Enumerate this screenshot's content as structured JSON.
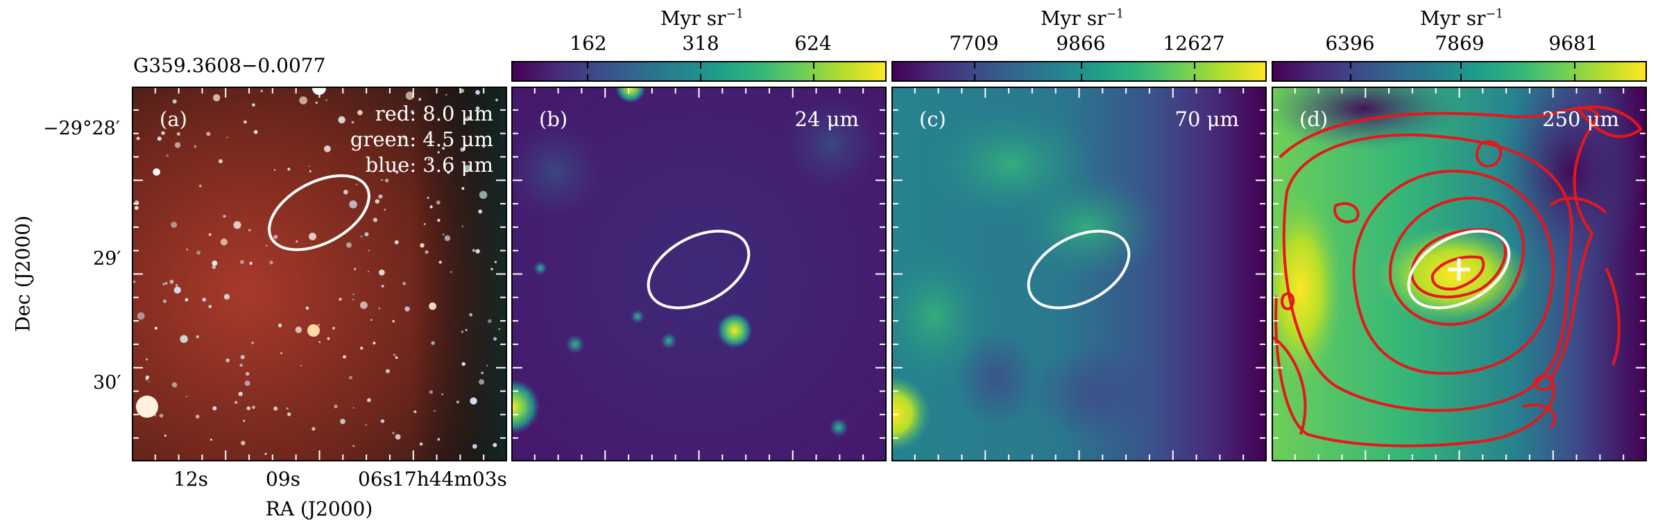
{
  "source_name": "G359.3608−0.0077",
  "colorbars": [
    {
      "unit": "Myr sr",
      "unit_exp": "−1",
      "ticks": [
        "162",
        "318",
        "624"
      ]
    },
    {
      "unit": "Myr sr",
      "unit_exp": "−1",
      "ticks": [
        "7709",
        "9866",
        "12627"
      ]
    },
    {
      "unit": "Myr sr",
      "unit_exp": "−1",
      "ticks": [
        "6396",
        "7869",
        "9681"
      ]
    }
  ],
  "panels": [
    {
      "tag": "(a)",
      "lines": [
        "red: 8.0 μm",
        "green: 4.5 μm",
        "blue: 3.6 μm"
      ]
    },
    {
      "tag": "(b)",
      "band": "24 μm"
    },
    {
      "tag": "(c)",
      "band": "70 μm"
    },
    {
      "tag": "(d)",
      "band": "250 μm"
    }
  ],
  "axes": {
    "xlabel": "RA (J2000)",
    "ylabel": "Dec (J2000)",
    "xticks": [
      "12s",
      "09s",
      "06s",
      "17h44m03s"
    ],
    "yticks": [
      "−29°28′",
      "29′",
      "30′"
    ]
  },
  "colormap": [
    "#440154",
    "#482878",
    "#3e4989",
    "#31688e",
    "#26828e",
    "#1f9e89",
    "#35b779",
    "#6ece58",
    "#b5de2b",
    "#fde725"
  ]
}
